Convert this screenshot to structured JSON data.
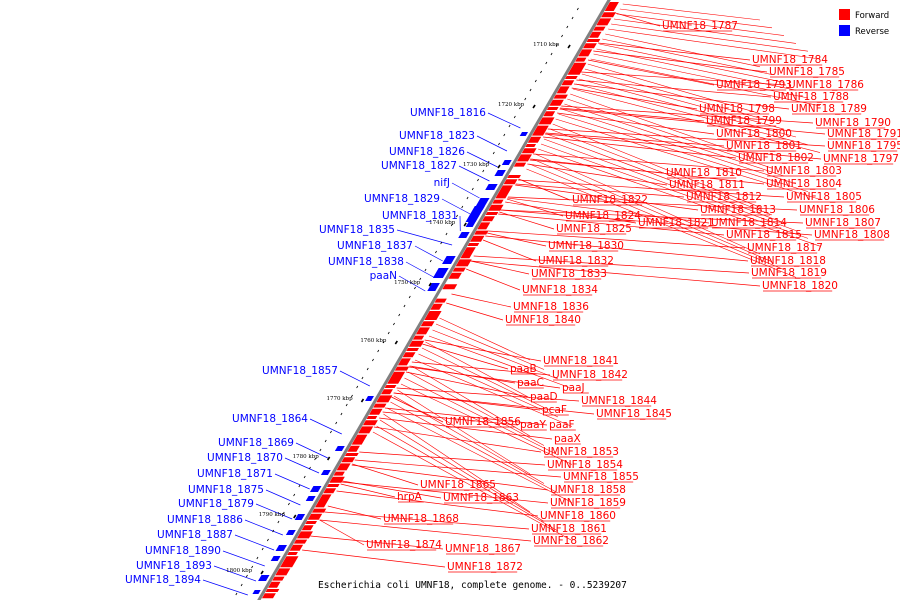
{
  "diagram_caption": "Escherichia coli UMNF18, complete genome. - 0..5239207",
  "legend": [
    {
      "label": "Forward",
      "color": "#ff0000"
    },
    {
      "label": "Reverse",
      "color": "#0000ff"
    }
  ],
  "colors": {
    "forward": "#ff0000",
    "reverse": "#0000ff",
    "axis": "#808080"
  },
  "ticks": [
    "1710 kbp",
    "1720 kbp",
    "1730 kbp",
    "1740 kbp",
    "1750 kbp",
    "1760 kbp",
    "1770 kbp",
    "1780 kbp",
    "1790 kbp",
    "1800 kbp"
  ],
  "forward_labels": [
    "UMNF18_1787",
    "UMNF18_1784",
    "UMNF18_1785",
    "UMNF18_1793",
    "UMNF18_1786",
    "UMNF18_1788",
    "UMNF18_1798",
    "UMNF18_1789",
    "UMNF18_1799",
    "UMNF18_1790",
    "UMNF18_1800",
    "UMNF18_1791",
    "UMNF18_1801",
    "UMNF18_1795",
    "UMNF18_1802",
    "UMNF18_1797",
    "UMNF18_1810",
    "UMNF18_1803",
    "UMNF18_1811",
    "UMNF18_1804",
    "UMNF18_1812",
    "UMNF18_1805",
    "UMNF18_1822",
    "UMNF18_1813",
    "UMNF18_1806",
    "UMNF18_1824",
    "UMNF18_1821",
    "UMNF18_1814",
    "UMNF18_1807",
    "UMNF18_1825",
    "UMNF18_1815",
    "UMNF18_1808",
    "UMNF18_1830",
    "UMNF18_1817",
    "UMNF18_1832",
    "UMNF18_1818",
    "UMNF18_1833",
    "UMNF18_1819",
    "UMNF18_1834",
    "UMNF18_1820",
    "UMNF18_1836",
    "UMNF18_1840",
    "UMNF18_1841",
    "paaB",
    "UMNF18_1842",
    "paaC",
    "paaJ",
    "paaD",
    "UMNF18_1844",
    "pcaF",
    "UMNF18_1845",
    "UMNF18_1856",
    "paaY",
    "paaF",
    "paaX",
    "UMNF18_1853",
    "UMNF18_1854",
    "UMNF18_1855",
    "UMNF18_1865",
    "UMNF18_1858",
    "hrpA",
    "UMNF18_1863",
    "UMNF18_1859",
    "UMNF18_1860",
    "UMNF18_1868",
    "UMNF18_1861",
    "UMNF18_1862",
    "UMNF18_1874",
    "UMNF18_1867",
    "UMNF18_1872"
  ],
  "reverse_labels": [
    "UMNF18_1816",
    "UMNF18_1823",
    "UMNF18_1826",
    "UMNF18_1827",
    "nifJ",
    "UMNF18_1829",
    "UMNF18_1831",
    "UMNF18_1835",
    "UMNF18_1837",
    "UMNF18_1838",
    "paaN",
    "UMNF18_1857",
    "UMNF18_1864",
    "UMNF18_1869",
    "UMNF18_1870",
    "UMNF18_1871",
    "UMNF18_1875",
    "UMNF18_1879",
    "UMNF18_1886",
    "UMNF18_1887",
    "UMNF18_1890",
    "UMNF18_1893",
    "UMNF18_1894"
  ]
}
